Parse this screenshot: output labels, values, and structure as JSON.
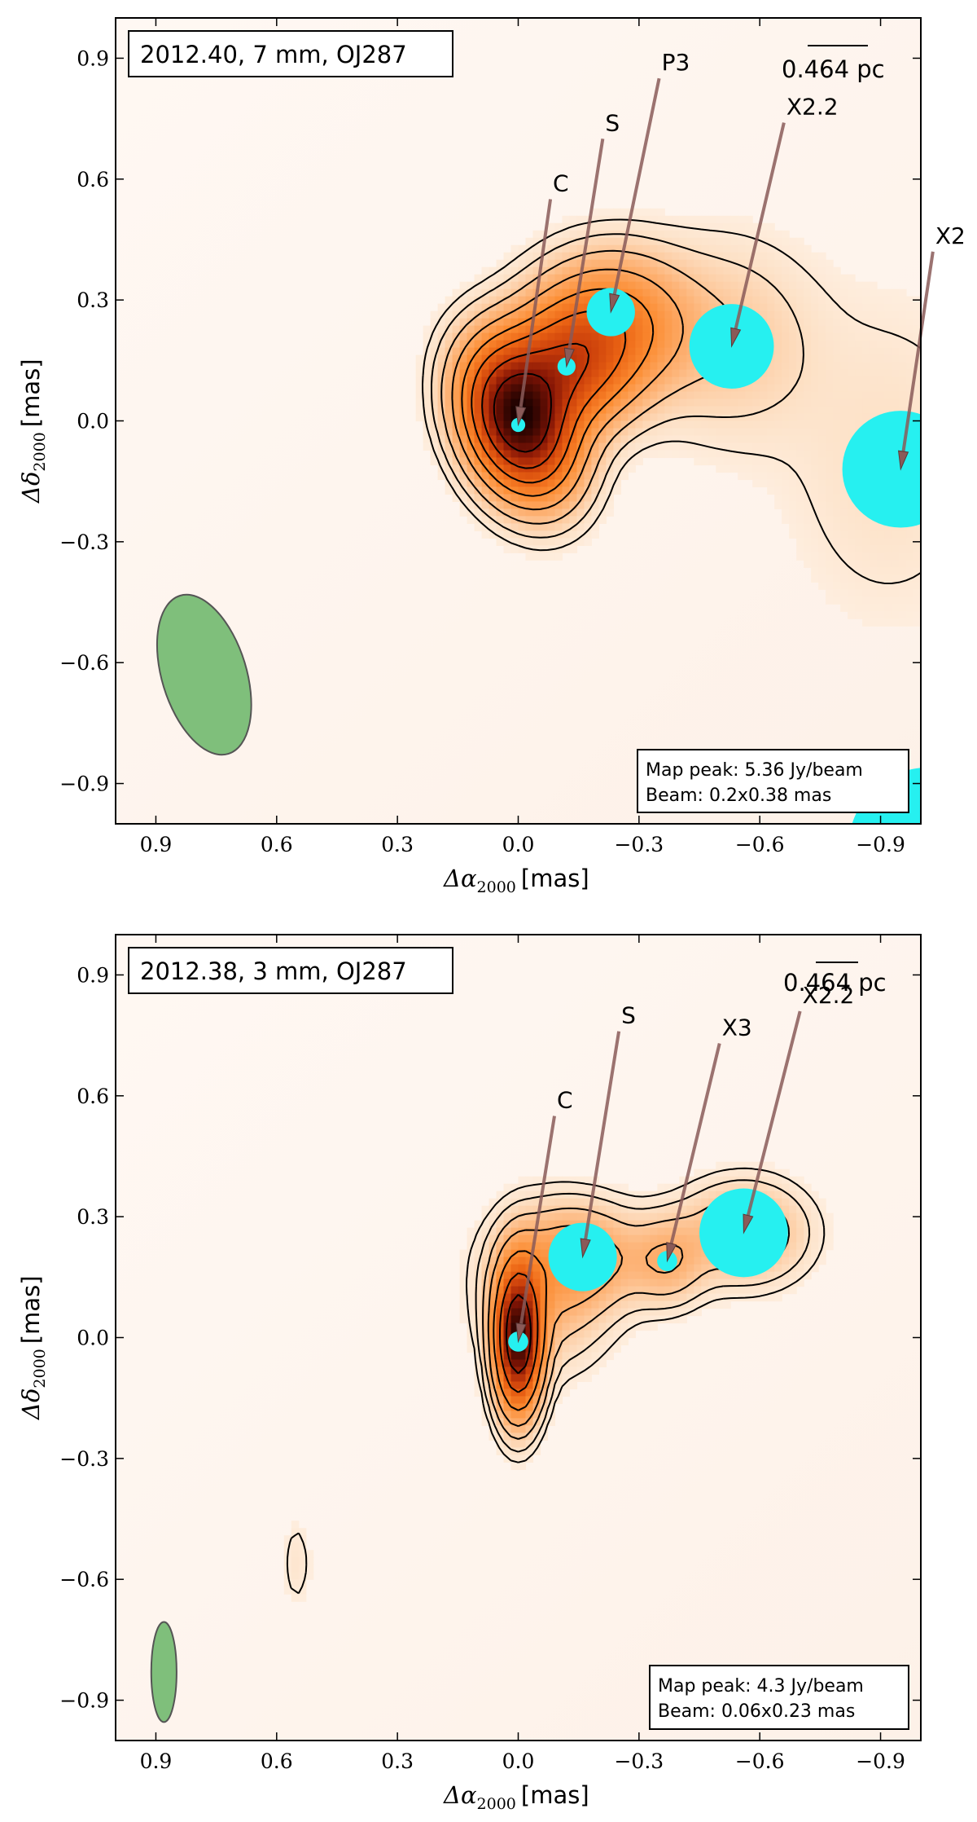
{
  "chart_data": [
    {
      "type": "contour",
      "title": "2012.40,  7 mm,  OJ287",
      "scale_bar_label": "0.464 pc",
      "xlabel_sym": "Δα",
      "xlabel_sub": "2000",
      "xlabel_unit": "[mas]",
      "ylabel_sym": "Δδ",
      "ylabel_sub": "2000",
      "ylabel_unit": "[mas]",
      "xlim": [
        1.0,
        -1.0
      ],
      "ylim": [
        -1.0,
        1.0
      ],
      "xticks": [
        0.9,
        0.6,
        0.3,
        0.0,
        -0.3,
        -0.6,
        -0.9
      ],
      "xtick_labels": [
        "0.9",
        "0.6",
        "0.3",
        "0.0",
        "−0.3",
        "−0.6",
        "−0.9"
      ],
      "yticks": [
        0.9,
        0.6,
        0.3,
        0.0,
        -0.3,
        -0.6,
        -0.9
      ],
      "ytick_labels": [
        "0.9",
        "0.6",
        "0.3",
        "0.0",
        "−0.3",
        "−0.6",
        "−0.9"
      ],
      "info": [
        "Map peak: 5.36 Jy/beam",
        "Beam: 0.2x0.38 mas"
      ],
      "beam": {
        "x": 0.78,
        "y": -0.63,
        "minor_axis": 0.2,
        "major_axis": 0.38,
        "pa_deg": 17,
        "color": "#7fbf7b"
      },
      "components": [
        {
          "name": "C",
          "x": 0.0,
          "y": -0.01,
          "size": 0.035
        },
        {
          "name": "S",
          "x": -0.12,
          "y": 0.135,
          "size": 0.045
        },
        {
          "name": "P3",
          "x": -0.23,
          "y": 0.27,
          "size": 0.12
        },
        {
          "name": "X2.2",
          "x": -0.53,
          "y": 0.185,
          "size": 0.21
        },
        {
          "name": "X2",
          "x": -0.95,
          "y": -0.12,
          "size": 0.29
        }
      ],
      "labels": [
        {
          "text": "C",
          "x": -0.08,
          "y": 0.55,
          "tip_x": 0.0,
          "tip_y": -0.01
        },
        {
          "text": "S",
          "x": -0.21,
          "y": 0.7,
          "tip_x": -0.12,
          "tip_y": 0.135
        },
        {
          "text": "P3",
          "x": -0.35,
          "y": 0.85,
          "tip_x": -0.23,
          "tip_y": 0.27
        },
        {
          "text": "X2.2",
          "x": -0.66,
          "y": 0.74,
          "tip_x": -0.53,
          "tip_y": 0.185
        },
        {
          "text": "X2",
          "x": -1.03,
          "y": 0.42,
          "tip_x": -0.95,
          "tip_y": -0.12
        }
      ],
      "emission": [
        {
          "x": 0.0,
          "y": 0.0,
          "sx": 0.08,
          "sy": 0.12,
          "amp": 1.0,
          "rot_deg": 20
        },
        {
          "x": -0.12,
          "y": 0.13,
          "sx": 0.1,
          "sy": 0.1,
          "amp": 0.45,
          "rot_deg": 0
        },
        {
          "x": -0.23,
          "y": 0.24,
          "sx": 0.12,
          "sy": 0.11,
          "amp": 0.32,
          "rot_deg": 0
        },
        {
          "x": -0.52,
          "y": 0.2,
          "sx": 0.14,
          "sy": 0.16,
          "amp": 0.08,
          "rot_deg": 0
        },
        {
          "x": -0.92,
          "y": -0.1,
          "sx": 0.18,
          "sy": 0.28,
          "amp": 0.04,
          "rot_deg": 0
        }
      ],
      "contour_levels": [
        0.02,
        0.04,
        0.08,
        0.15,
        0.25,
        0.38,
        0.55,
        0.75
      ]
    },
    {
      "type": "contour",
      "title": "2012.38,  3 mm,  OJ287",
      "scale_bar_label": "0.464 pc",
      "xlabel_sym": "Δα",
      "xlabel_sub": "2000",
      "xlabel_unit": "[mas]",
      "ylabel_sym": "Δδ",
      "ylabel_sub": "2000",
      "ylabel_unit": "[mas]",
      "xlim": [
        1.0,
        -1.0
      ],
      "ylim": [
        -1.0,
        1.0
      ],
      "xticks": [
        0.9,
        0.6,
        0.3,
        0.0,
        -0.3,
        -0.6,
        -0.9
      ],
      "xtick_labels": [
        "0.9",
        "0.6",
        "0.3",
        "0.0",
        "−0.3",
        "−0.6",
        "−0.9"
      ],
      "yticks": [
        0.9,
        0.6,
        0.3,
        0.0,
        -0.3,
        -0.6,
        -0.9
      ],
      "ytick_labels": [
        "0.9",
        "0.6",
        "0.3",
        "0.0",
        "−0.3",
        "−0.6",
        "−0.9"
      ],
      "info": [
        "Map peak: 4.3 Jy/beam",
        "Beam: 0.06x0.23 mas"
      ],
      "beam": {
        "x": 0.88,
        "y": -0.83,
        "minor_axis": 0.06,
        "major_axis": 0.23,
        "pa_deg": 0,
        "color": "#7fbf7b"
      },
      "components": [
        {
          "name": "C",
          "x": 0.0,
          "y": -0.01,
          "size": 0.05
        },
        {
          "name": "S",
          "x": -0.16,
          "y": 0.2,
          "size": 0.17
        },
        {
          "name": "X3",
          "x": -0.37,
          "y": 0.19,
          "size": 0.05
        },
        {
          "name": "X2.2",
          "x": -0.56,
          "y": 0.26,
          "size": 0.22
        }
      ],
      "labels": [
        {
          "text": "C",
          "x": -0.09,
          "y": 0.55,
          "tip_x": 0.0,
          "tip_y": -0.01
        },
        {
          "text": "S",
          "x": -0.25,
          "y": 0.76,
          "tip_x": -0.16,
          "tip_y": 0.2
        },
        {
          "text": "X3",
          "x": -0.5,
          "y": 0.73,
          "tip_x": -0.37,
          "tip_y": 0.19
        },
        {
          "text": "X2.2",
          "x": -0.7,
          "y": 0.81,
          "tip_x": -0.56,
          "tip_y": 0.26
        }
      ],
      "emission": [
        {
          "x": 0.0,
          "y": 0.0,
          "sx": 0.035,
          "sy": 0.11,
          "amp": 1.0,
          "rot_deg": 0
        },
        {
          "x": -0.07,
          "y": 0.12,
          "sx": 0.1,
          "sy": 0.12,
          "amp": 0.12,
          "rot_deg": 0
        },
        {
          "x": -0.16,
          "y": 0.2,
          "sx": 0.1,
          "sy": 0.08,
          "amp": 0.16,
          "rot_deg": 0
        },
        {
          "x": -0.37,
          "y": 0.19,
          "sx": 0.06,
          "sy": 0.07,
          "amp": 0.12,
          "rot_deg": 0
        },
        {
          "x": -0.56,
          "y": 0.26,
          "sx": 0.1,
          "sy": 0.08,
          "amp": 0.14,
          "rot_deg": 0
        },
        {
          "x": 0.55,
          "y": -0.56,
          "sx": 0.025,
          "sy": 0.08,
          "amp": 0.03,
          "rot_deg": 0
        }
      ],
      "contour_levels": [
        0.018,
        0.035,
        0.07,
        0.13,
        0.25,
        0.45,
        0.7
      ]
    }
  ]
}
